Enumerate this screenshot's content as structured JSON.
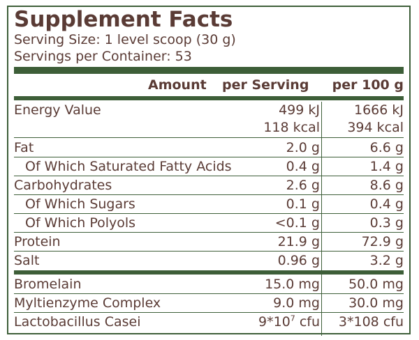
{
  "label": {
    "title": "Supplement Facts",
    "serving_size": "Serving Size: 1 level scoop (30 g)",
    "servings_per_container": "Servings per Container: 53"
  },
  "columns": {
    "amount": "Amount",
    "per_serving": "per Serving",
    "per_100g": "per 100 g"
  },
  "nutrients": [
    {
      "name": "Energy Value",
      "per_serving": "499 kJ",
      "per_100g": "1666 kJ"
    },
    {
      "name": "",
      "per_serving": "118 kcal",
      "per_100g": "394 kcal"
    },
    {
      "name": "Fat",
      "per_serving": "2.0 g",
      "per_100g": "6.6 g"
    },
    {
      "name": "Of Which Saturated Fatty Acids",
      "per_serving": "0.4 g",
      "per_100g": "1.4 g"
    },
    {
      "name": "Carbohydrates",
      "per_serving": "2.6 g",
      "per_100g": "8.6 g"
    },
    {
      "name": "Of Which Sugars",
      "per_serving": "0.1 g",
      "per_100g": "0.4 g"
    },
    {
      "name": "Of Which Polyols",
      "per_serving": "<0.1 g",
      "per_100g": "0.3 g"
    },
    {
      "name": "Protein",
      "per_serving": "21.9 g",
      "per_100g": "72.9 g"
    },
    {
      "name": "Salt",
      "per_serving": "0.96 g",
      "per_100g": "3.2 g"
    }
  ],
  "extras": [
    {
      "name": "Bromelain",
      "per_serving": "15.0 mg",
      "per_100g": "50.0 mg"
    },
    {
      "name": "Myltienzyme Complex",
      "per_serving": "9.0 mg",
      "per_100g": "30.0 mg"
    },
    {
      "name": "Lactobacillus Casei",
      "per_serving_base": "9*10",
      "per_serving_exp": "7",
      "per_serving_unit": " cfu",
      "per_100g": "3*108 cfu"
    }
  ],
  "colors": {
    "border": "#3d5e38",
    "text": "#5a3b35"
  }
}
